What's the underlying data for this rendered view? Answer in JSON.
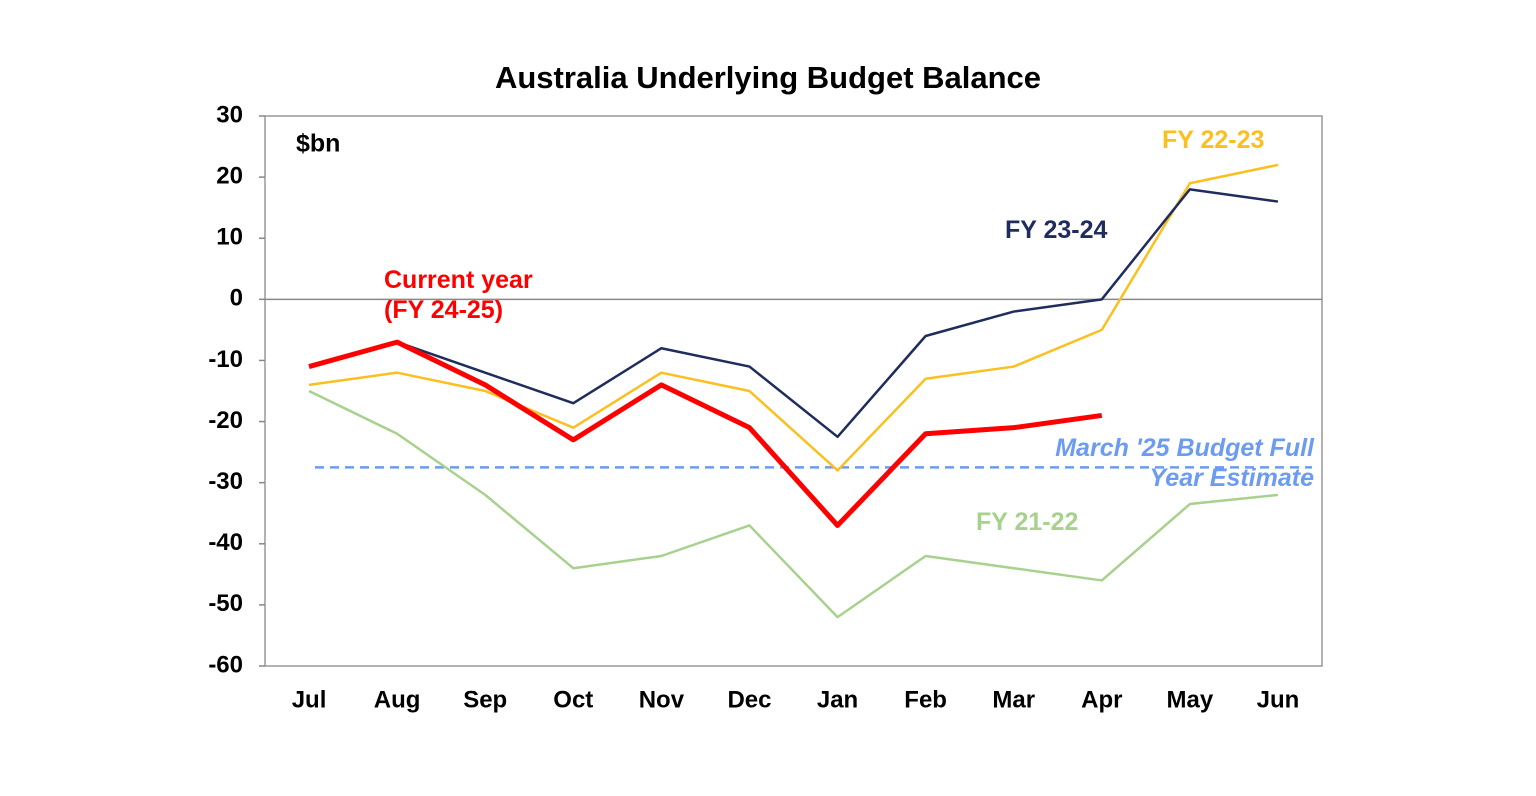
{
  "chart_data": {
    "type": "line",
    "title": "Australia Underlying Budget Balance",
    "y_unit_label": "$bn",
    "categories": [
      "Jul",
      "Aug",
      "Sep",
      "Oct",
      "Nov",
      "Dec",
      "Jan",
      "Feb",
      "Mar",
      "Apr",
      "May",
      "Jun"
    ],
    "ylim": [
      -60,
      30
    ],
    "yticks": [
      -60,
      -50,
      -40,
      -30,
      -20,
      -10,
      0,
      10,
      20,
      30
    ],
    "grid": false,
    "series": [
      {
        "name": "Current year (FY 24-25)",
        "color": "#ff0000",
        "width": 5,
        "values": [
          -11,
          -7,
          -14,
          -23,
          -14,
          -21,
          -37,
          -22,
          -21,
          -19,
          null,
          null
        ]
      },
      {
        "name": "FY 23-24",
        "color": "#1f2d5e",
        "width": 2.5,
        "values": [
          -11,
          -7,
          -12,
          -17,
          -8,
          -11,
          -22.5,
          -6,
          -2,
          0,
          18,
          16
        ]
      },
      {
        "name": "FY 22-23",
        "color": "#fbbf1f",
        "width": 2.5,
        "values": [
          -14,
          -12,
          -15,
          -21,
          -12,
          -15,
          -28,
          -13,
          -11,
          -5,
          19,
          22
        ]
      },
      {
        "name": "FY 21-22",
        "color": "#a9d18e",
        "width": 2.5,
        "values": [
          -15,
          -22,
          -32,
          -44,
          -42,
          -37,
          -52,
          -42,
          -44,
          -46,
          -33.5,
          -32
        ]
      }
    ],
    "reference_line": {
      "value": -27.5,
      "label": "March '25 Budget Full Year Estimate",
      "color": "#6c9bf2"
    }
  }
}
